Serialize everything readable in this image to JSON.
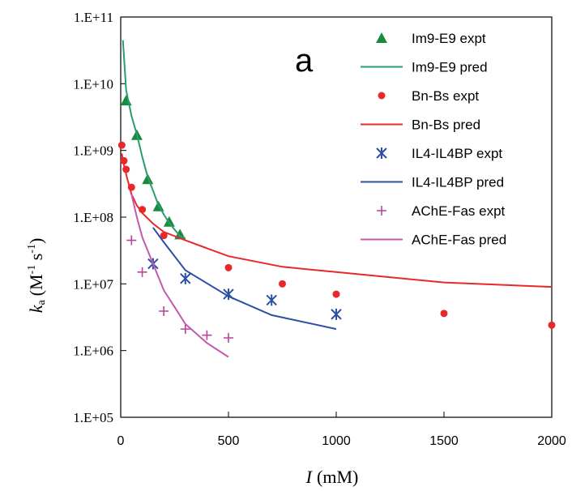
{
  "chart_data": {
    "type": "scatter",
    "panel_label": "a",
    "xlabel_var": "I",
    "xlabel_unit": "(mM)",
    "ylabel_var": "k",
    "ylabel_sub": "a",
    "ylabel_unit": "(M",
    "ylabel_exp1": "-1",
    "ylabel_mid": " s",
    "ylabel_exp2": "-1",
    "ylabel_close": ")",
    "xlim": [
      0,
      2000
    ],
    "ylim_log10": [
      5,
      11
    ],
    "y_scale": "log",
    "grid": false,
    "legend_position": "top-right",
    "x_ticks": [
      "0",
      "500",
      "1000",
      "1500",
      "2000"
    ],
    "x_tick_values": [
      0,
      500,
      1000,
      1500,
      2000
    ],
    "y_ticks": [
      "1.E+05",
      "1.E+06",
      "1.E+07",
      "1.E+08",
      "1.E+09",
      "1.E+10",
      "1.E+11"
    ],
    "y_tick_values": [
      5,
      6,
      7,
      8,
      9,
      10,
      11
    ],
    "series": [
      {
        "name": "Im9-E9 expt",
        "kind": "scatter",
        "marker": "triangle",
        "color": "#1a8a3e",
        "points": [
          [
            25,
            5600000000.0
          ],
          [
            75,
            1700000000.0
          ],
          [
            125,
            370000000.0
          ],
          [
            175,
            145000000.0
          ],
          [
            225,
            85000000.0
          ],
          [
            275,
            55000000.0
          ]
        ]
      },
      {
        "name": "Im9-E9 pred",
        "kind": "line",
        "color": "#2a9d6a",
        "points": [
          [
            10,
            45000000000.0
          ],
          [
            25,
            8000000000.0
          ],
          [
            50,
            3300000000.0
          ],
          [
            75,
            1750000000.0
          ],
          [
            100,
            800000000.0
          ],
          [
            125,
            400000000.0
          ],
          [
            150,
            250000000.0
          ],
          [
            175,
            150000000.0
          ],
          [
            200,
            110000000.0
          ],
          [
            225,
            82000000.0
          ],
          [
            250,
            65000000.0
          ],
          [
            275,
            52000000.0
          ],
          [
            300,
            48000000.0
          ]
        ]
      },
      {
        "name": "Bn-Bs expt",
        "kind": "scatter",
        "marker": "circle",
        "color": "#e8282b",
        "points": [
          [
            5,
            1200000000.0
          ],
          [
            15,
            700000000.0
          ],
          [
            25,
            520000000.0
          ],
          [
            50,
            280000000.0
          ],
          [
            100,
            130000000.0
          ],
          [
            200,
            53000000.0
          ],
          [
            500,
            17500000.0
          ],
          [
            750,
            10000000.0
          ],
          [
            1000,
            7000000.0
          ],
          [
            1500,
            3600000.0
          ],
          [
            2000,
            2400000.0
          ]
        ]
      },
      {
        "name": "Bn-Bs pred",
        "kind": "line",
        "color": "#e8282b",
        "points": [
          [
            5,
            900000000.0
          ],
          [
            15,
            600000000.0
          ],
          [
            30,
            380000000.0
          ],
          [
            50,
            220000000.0
          ],
          [
            75,
            150000000.0
          ],
          [
            100,
            115000000.0
          ],
          [
            150,
            80000000.0
          ],
          [
            200,
            60000000.0
          ],
          [
            300,
            45000000.0
          ],
          [
            500,
            26000000.0
          ],
          [
            750,
            18000000.0
          ],
          [
            1000,
            15000000.0
          ],
          [
            1500,
            10500000.0
          ],
          [
            2000,
            9000000.0
          ]
        ]
      },
      {
        "name": "IL4-IL4BP expt",
        "kind": "scatter",
        "marker": "asterisk",
        "color": "#2b4fa3",
        "points": [
          [
            150,
            20000000.0
          ],
          [
            300,
            12000000.0
          ],
          [
            500,
            7000000.0
          ],
          [
            700,
            5700000.0
          ],
          [
            1000,
            3500000.0
          ]
        ]
      },
      {
        "name": "IL4-IL4BP pred",
        "kind": "line",
        "color": "#2b4fa3",
        "points": [
          [
            150,
            70000000.0
          ],
          [
            200,
            42000000.0
          ],
          [
            300,
            16000000.0
          ],
          [
            500,
            6500000.0
          ],
          [
            700,
            3400000.0
          ],
          [
            1000,
            2100000.0
          ]
        ]
      },
      {
        "name": "AChE-Fas expt",
        "kind": "scatter",
        "marker": "plus",
        "color": "#b8449a",
        "points": [
          [
            50,
            45000000.0
          ],
          [
            100,
            15000000.0
          ],
          [
            200,
            3900000.0
          ],
          [
            300,
            2100000.0
          ],
          [
            400,
            1700000.0
          ],
          [
            500,
            1550000.0
          ]
        ]
      },
      {
        "name": "AChE-Fas pred",
        "kind": "line",
        "color": "#c458ac",
        "points": [
          [
            50,
            220000000.0
          ],
          [
            75,
            100000000.0
          ],
          [
            100,
            50000000.0
          ],
          [
            150,
            20000000.0
          ],
          [
            200,
            8000000.0
          ],
          [
            250,
            4500000.0
          ],
          [
            300,
            2500000.0
          ],
          [
            400,
            1300000.0
          ],
          [
            500,
            800000.0
          ]
        ]
      }
    ]
  }
}
